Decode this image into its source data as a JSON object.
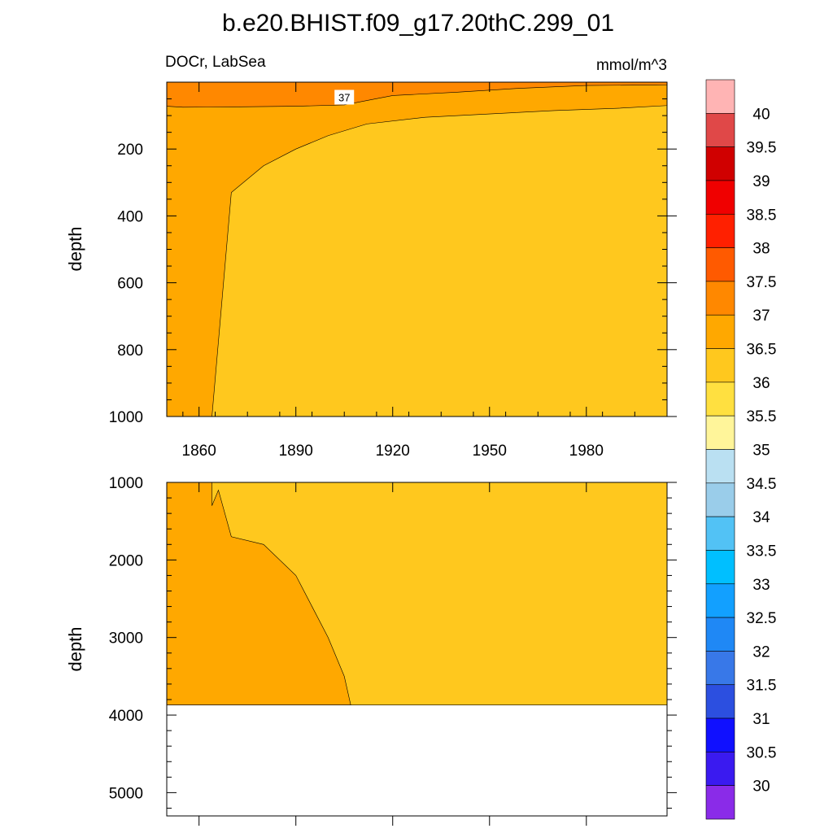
{
  "title": "b.e20.BHIST.f09_g17.20thC.299_01",
  "subtitle_left": "DOCr, LabSea",
  "subtitle_right": "mmol/m^3",
  "colors": {
    "c3600": "#FFC81E",
    "c3650": "#FFA800",
    "c3700": "#FF8800",
    "missing": "#FFFFFF"
  },
  "chart_data": [
    {
      "type": "heatmap",
      "panel": "upper",
      "variable": "DOCr",
      "region": "LabSea",
      "units": "mmol/m^3",
      "ylabel": "depth",
      "xlim": [
        1850,
        2005
      ],
      "ylim": [
        1000,
        0
      ],
      "x_ticks": [
        "1860",
        "1890",
        "1920",
        "1950",
        "1980"
      ],
      "y_ticks": [
        "200",
        "400",
        "600",
        "800",
        "1000"
      ],
      "contour_label": "37",
      "regions": [
        {
          "level_range": [
            37,
            37.5
          ],
          "color": "#FF8800",
          "x": [
            1850,
            1855,
            1870,
            1890,
            1905,
            1912,
            1920,
            1940,
            1960,
            1980,
            2005
          ],
          "top": [
            0,
            0,
            0,
            0,
            0,
            0,
            0,
            0,
            0,
            0,
            0
          ],
          "bottom": [
            72,
            75,
            74,
            72,
            68,
            55,
            40,
            30,
            18,
            10,
            8
          ]
        },
        {
          "level_range": [
            36.5,
            37
          ],
          "color": "#FFA800",
          "x": [
            1850,
            1864,
            1870,
            1880,
            1890,
            1900,
            1912,
            1930,
            1950,
            1970,
            1990,
            2005
          ],
          "top_profile": [
            0,
            0,
            0,
            0,
            0,
            0,
            0,
            0,
            0,
            0,
            0,
            0
          ],
          "bottom_profile": [
            1000,
            1000,
            330,
            250,
            200,
            160,
            125,
            105,
            95,
            85,
            78,
            70
          ]
        },
        {
          "level_range": [
            36,
            36.5
          ],
          "color": "#FFC81E",
          "note": "background"
        }
      ]
    },
    {
      "type": "heatmap",
      "panel": "lower",
      "ylabel": "depth",
      "xlim": [
        1850,
        2005
      ],
      "ylim": [
        5300,
        1000
      ],
      "y_ticks": [
        "1000",
        "2000",
        "3000",
        "4000",
        "5000"
      ],
      "ocean_bottom": 3870,
      "boundary_x": [
        1864,
        1864,
        1866,
        1870,
        1880,
        1890,
        1895,
        1900,
        1905,
        1907
      ],
      "boundary_depth": [
        1000,
        1300,
        1100,
        1700,
        1800,
        2200,
        2600,
        3000,
        3500,
        3870
      ],
      "regions": [
        {
          "level_range": [
            36.5,
            37
          ],
          "color": "#FFA800"
        },
        {
          "level_range": [
            36,
            36.5
          ],
          "color": "#FFC81E"
        }
      ]
    }
  ],
  "colorbar": {
    "labels": [
      "40",
      "39.5",
      "39",
      "38.5",
      "38",
      "37.5",
      "37",
      "36.5",
      "36",
      "35.5",
      "35",
      "34.5",
      "34",
      "33.5",
      "33",
      "32.5",
      "32",
      "31.5",
      "31",
      "30.5",
      "30"
    ],
    "colors": [
      "#FFB4B4",
      "#E04848",
      "#D00000",
      "#F00000",
      "#FF2000",
      "#FF5A00",
      "#FF8800",
      "#FFA800",
      "#FFC81E",
      "#FFE040",
      "#FFF59A",
      "#BAE0F2",
      "#9ACDEA",
      "#52C2F5",
      "#00BFFF",
      "#12A0FF",
      "#1F88F5",
      "#3878E8",
      "#2C4FE0",
      "#1010FF",
      "#3A1AF0",
      "#8A2BE8"
    ]
  }
}
